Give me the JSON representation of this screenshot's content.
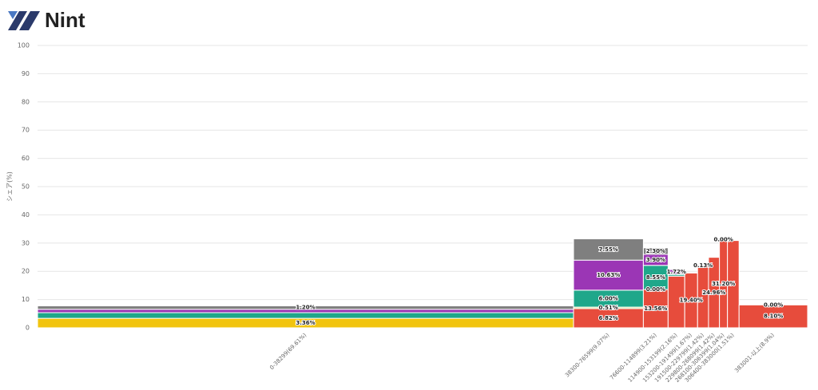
{
  "logo": "Nint",
  "chart_data": {
    "type": "marimekko",
    "y_label": "シェア(%)",
    "ylim": [
      0,
      100
    ],
    "yticks": [
      0,
      10,
      20,
      30,
      40,
      50,
      60,
      70,
      80,
      90,
      100
    ],
    "grid": true,
    "categories": [
      "0-38299(69.61%)",
      "38300-76599(9.07%)",
      "76600-114899(3.21%)",
      "114900-153199(2.16%)",
      "153200-191499(1.67%)",
      "191500-229799(1.42%)",
      "229800-268099(1.42%)",
      "268100-306399(1.04%)",
      "306400-383000(1.51%)",
      "383001-以上(8.9%)"
    ],
    "widths": [
      69.61,
      9.07,
      3.21,
      2.16,
      1.67,
      1.42,
      1.42,
      1.04,
      1.51,
      8.9
    ],
    "series": [
      {
        "color": "#f1c40f",
        "values": [
          3.36,
          null,
          null,
          null,
          null,
          null,
          null,
          null,
          null,
          null
        ],
        "value_labels": [
          "3.36%",
          null,
          null,
          null,
          null,
          null,
          null,
          null,
          null,
          null
        ]
      },
      {
        "color": "#e74c3c",
        "values": [
          null,
          6.82,
          13.56,
          18.3,
          19.4,
          21.9,
          24.96,
          31.2,
          30.9,
          8.1
        ],
        "value_labels": [
          null,
          "6.82%",
          "13.56%",
          null,
          "19.40%",
          null,
          "24.96%",
          "31.20%",
          null,
          "8.10%"
        ]
      },
      {
        "color": "#d4e08a",
        "values": [
          null,
          0.51,
          0.0,
          null,
          null,
          null,
          null,
          null,
          null,
          null
        ],
        "value_labels": [
          null,
          "0.51%",
          "0.00%",
          null,
          null,
          null,
          null,
          null,
          null,
          null
        ]
      },
      {
        "color": "#1fa78a",
        "values": [
          2.0,
          6.0,
          8.55,
          0.6,
          null,
          0.13,
          null,
          0.0,
          null,
          0.0
        ],
        "value_labels": [
          null,
          "6.00%",
          "8.55%",
          null,
          null,
          "0.13%",
          null,
          "0.00%",
          null,
          "0.00%"
        ]
      },
      {
        "color": "#9b36b5",
        "values": [
          1.2,
          10.63,
          3.9,
          1.72,
          null,
          null,
          null,
          null,
          null,
          null
        ],
        "value_labels": [
          null,
          "10.63%",
          "3.90%",
          "1.72%",
          null,
          null,
          null,
          null,
          null,
          null
        ]
      },
      {
        "color": "#7f7f7f",
        "values": [
          1.2,
          7.55,
          2.3,
          null,
          null,
          null,
          null,
          null,
          null,
          null
        ],
        "value_labels": [
          "1.20%",
          "7.55%",
          "2.30%",
          null,
          null,
          null,
          null,
          null,
          null,
          null
        ]
      }
    ]
  }
}
